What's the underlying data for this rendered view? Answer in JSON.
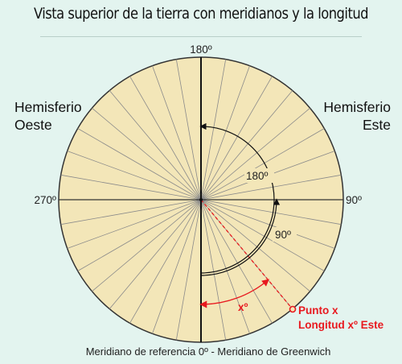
{
  "title": "Vista superior de la tierra con meridianos y la longitud",
  "hemispheres": {
    "west": [
      "Hemisferio",
      "Oeste"
    ],
    "east": [
      "Hemisferio",
      "Este"
    ]
  },
  "degree_labels": {
    "top": "180º",
    "right": "90º",
    "left": "270º",
    "arc_180": "180º",
    "arc_90": "90º"
  },
  "point": {
    "arc_label": "xº",
    "lines": [
      "Punto x",
      "Longitud xº Este"
    ]
  },
  "caption": "Meridiano de referencia 0º - Meridiano de Greenwich",
  "colors": {
    "background": "#e3f4ef",
    "disk": "#f3e6b8",
    "accent_red": "#e8191f",
    "ink": "#111111"
  }
}
